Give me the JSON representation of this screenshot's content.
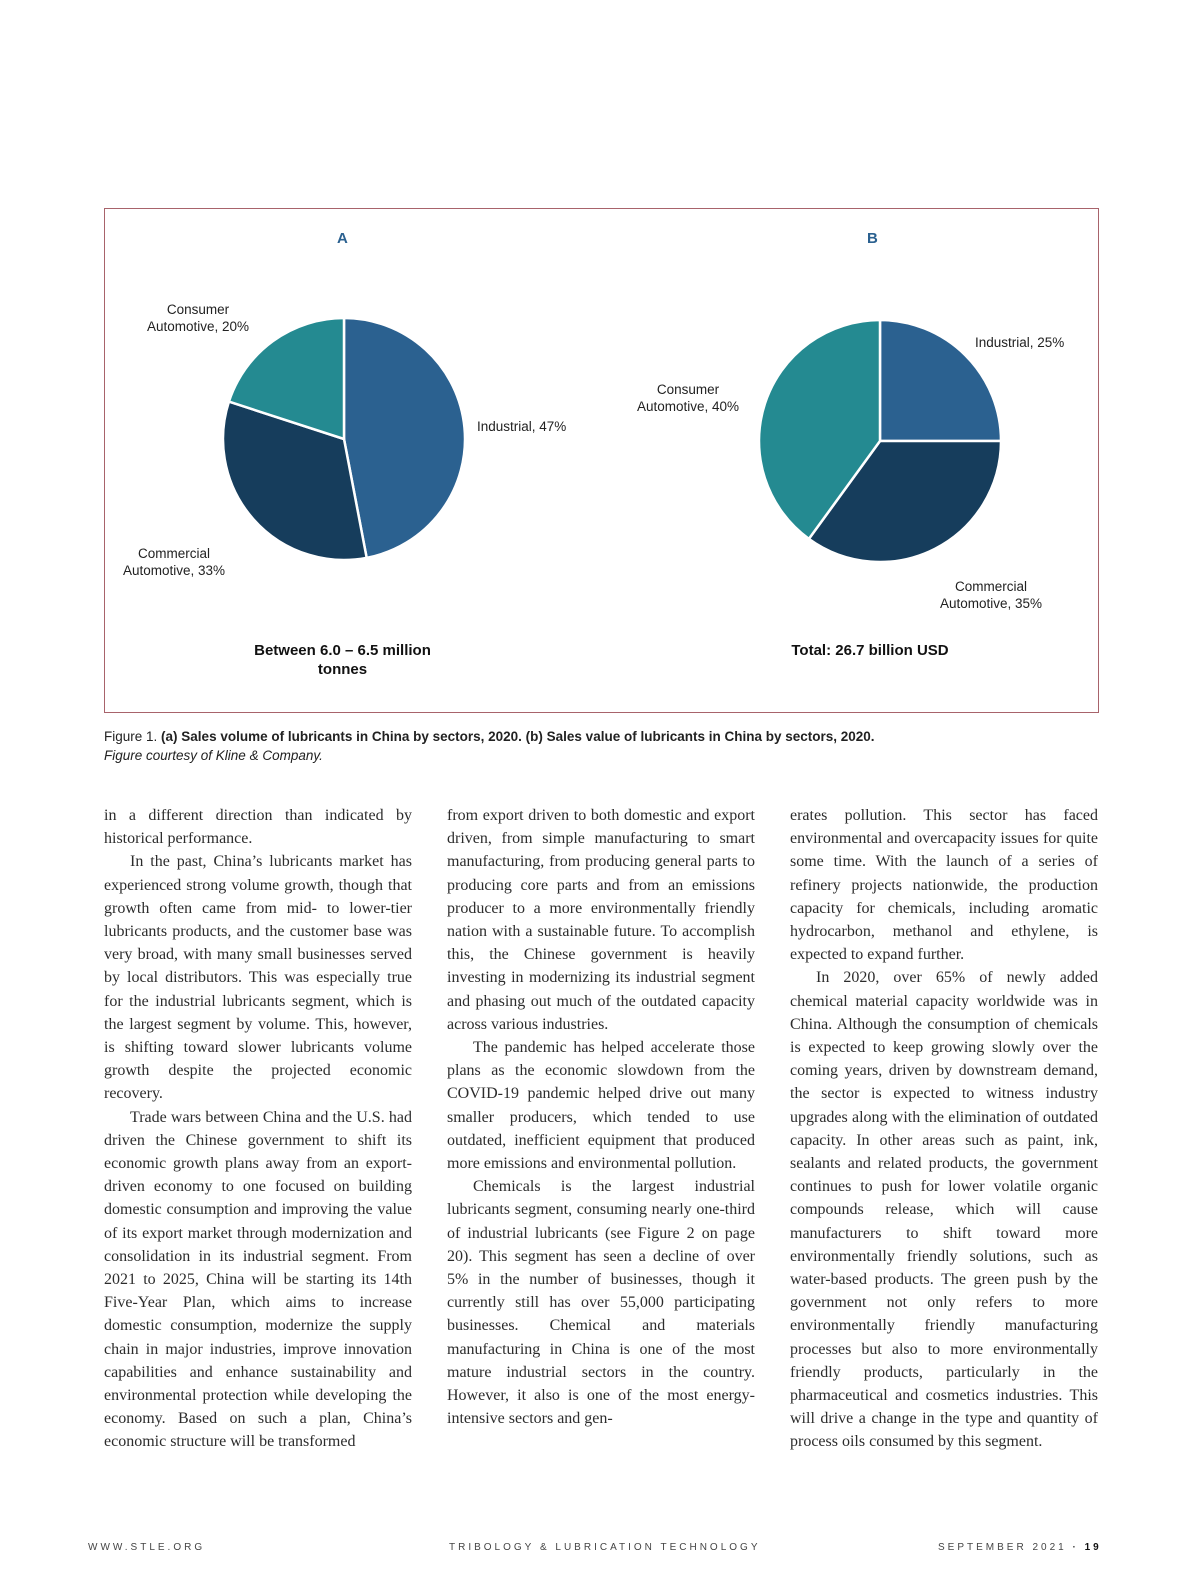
{
  "figure": {
    "caption_prefix": "Figure 1.",
    "caption_bold": "(a) Sales volume of lubricants in China by sectors, 2020. (b) Sales value of lubricants in China by sectors, 2020.",
    "caption_credit": "Figure courtesy of Kline & Company."
  },
  "chart_data": [
    {
      "type": "pie",
      "title": "A",
      "categories": [
        "Industrial",
        "Commercial Automotive",
        "Consumer Automotive"
      ],
      "values": [
        47,
        33,
        20
      ],
      "labels": {
        "industrial": "Industrial, 47%",
        "commercial_1": "Commercial",
        "commercial_2": "Automotive, 33%",
        "consumer_1": "Consumer",
        "consumer_2": "Automotive, 20%"
      },
      "total_1": "Between 6.0 – 6.5 million",
      "total_2": "tonnes"
    },
    {
      "type": "pie",
      "title": "B",
      "categories": [
        "Industrial",
        "Commercial Automotive",
        "Consumer Automotive"
      ],
      "values": [
        25,
        35,
        40
      ],
      "labels": {
        "industrial": "Industrial, 25%",
        "commercial_1": "Commercial",
        "commercial_2": "Automotive, 35%",
        "consumer_1": "Consumer",
        "consumer_2": "Automotive, 40%"
      },
      "total_1": "Total: 26.7 billion USD",
      "total_2": ""
    }
  ],
  "colors": {
    "industrial": "#2b6190",
    "commercial": "#163d5c",
    "consumer": "#248a91",
    "border": "#a8636b"
  },
  "columns": [
    [
      "in a different direction than indicated by historical performance.",
      "In the past, China’s lubricants market has experienced strong volume growth, though that growth often came from mid- to lower-tier lubricants products, and the customer base was very broad, with many small businesses served by local distributors. This was especially true for the industrial lubricants segment, which is the largest segment by volume. This, however, is shifting toward slower lubricants volume growth despite the projected economic recovery.",
      "Trade wars between China and the U.S. had driven the Chinese government to shift its economic growth plans away from an export-driven economy to one focused on building domestic consumption and improving the value of its export market through modernization and consolidation in its industrial segment. From 2021 to 2025, China will be starting its 14th Five-Year Plan, which aims to increase domestic consumption, modernize the supply chain in major industries, improve innovation capabilities and enhance sustainability and environmental protection while developing the economy. Based on such a plan, China’s economic structure will be transformed"
    ],
    [
      "from export driven to both domestic and export driven, from simple manufacturing to smart manufacturing, from producing general parts to producing core parts and from an emissions producer to a more environmentally friendly nation with a sustainable future. To accomplish this, the Chinese government is heavily investing in modernizing its industrial segment and phasing out much of the outdated capacity across various industries.",
      "The pandemic has helped accelerate those plans as the economic slowdown from the COVID-19 pandemic helped drive out many smaller producers, which tended to use outdated, inefficient equipment that produced more emissions and environmental pollution.",
      "Chemicals is the largest industrial lubricants segment, consuming nearly one-third of industrial lubricants (see Figure 2 on page 20). This segment has seen a decline of over 5% in the number of businesses, though it currently still has over 55,000 participating businesses. Chemical and materials manufacturing in China is one of the most mature industrial sectors in the country. However, it also is one of the most energy-intensive sectors and gen-"
    ],
    [
      "erates pollution. This sector has faced environmental and overcapacity issues for quite some time. With the launch of a series of refinery projects nationwide, the production capacity for chemicals, including aromatic hydrocarbon, methanol and ethylene, is expected to expand further.",
      "In 2020, over 65% of newly added chemical material capacity worldwide was in China. Although the consumption of chemicals is expected to keep growing slowly over the coming years, driven by downstream demand, the sector is expected to witness industry upgrades along with the elimination of outdated capacity. In other areas such as paint, ink, sealants and related products, the government continues to push for lower volatile organic compounds release, which will cause manufacturers to shift toward more environmentally friendly solutions, such as water-based products. The green push by the government not only refers to more environmentally friendly manufacturing processes but also to more environmentally friendly products, particularly in the pharmaceutical and cosmetics industries. This will drive a change in the type and quantity of process oils consumed by this segment."
    ]
  ],
  "footer": {
    "website": "WWW.STLE.ORG",
    "magazine": "TRIBOLOGY & LUBRICATION TECHNOLOGY",
    "issue": "SEPTEMBER 2021",
    "separator": "·",
    "page": "19"
  }
}
